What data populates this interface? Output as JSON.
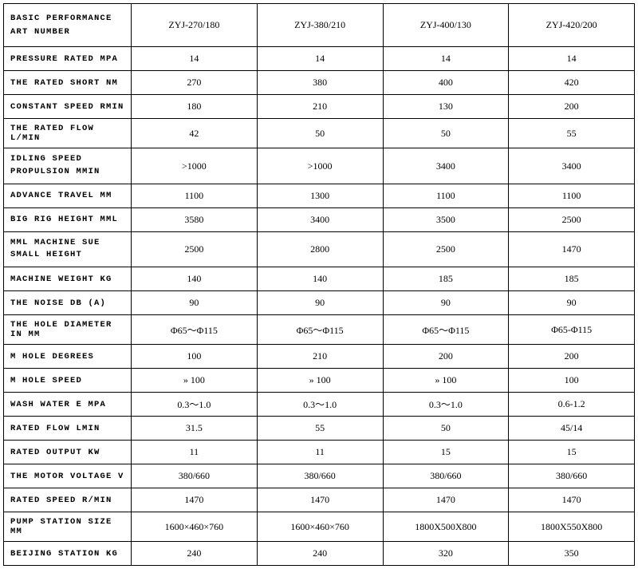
{
  "header_label": "BASIC PERFORMANCE<br>ART NUMBER",
  "columns": [
    "ZYJ-270/180",
    "ZYJ-380/210",
    "ZYJ-400/130",
    "ZYJ-420/200"
  ],
  "rows": [
    {
      "label": "PRESSURE RATED MPA",
      "values": [
        "14",
        "14",
        "14",
        "14"
      ]
    },
    {
      "label": "THE RATED SHORT NM",
      "values": [
        "270",
        "380",
        "400",
        "420"
      ]
    },
    {
      "label": "CONSTANT SPEED RMIN",
      "values": [
        "180",
        "210",
        "130",
        "200"
      ]
    },
    {
      "label": "THE RATED FLOW L/MIN",
      "values": [
        "42",
        "50",
        "50",
        "55"
      ]
    },
    {
      "label": "IDLING SPEED<br>PROPULSION MMIN",
      "values": [
        ">1000",
        ">1000",
        "3400",
        "3400"
      ],
      "tall": true
    },
    {
      "label": "ADVANCE TRAVEL MM",
      "values": [
        "1100",
        "1300",
        "1100",
        "1100"
      ]
    },
    {
      "label": "BIG RIG HEIGHT MML",
      "values": [
        "3580",
        "3400",
        "3500",
        "2500"
      ]
    },
    {
      "label": "MML MACHINE SUE<br>SMALL HEIGHT",
      "values": [
        "2500",
        "2800",
        "2500",
        "1470"
      ],
      "tall": true
    },
    {
      "label": "MACHINE WEIGHT KG",
      "values": [
        "140",
        "140",
        "185",
        "185"
      ]
    },
    {
      "label": "THE NOISE DB (A)",
      "values": [
        "90",
        "90",
        "90",
        "90"
      ]
    },
    {
      "label": "THE HOLE DIAMETER IN MM",
      "values": [
        "Φ65～Φ115",
        "Φ65～Φ115",
        "Φ65～Φ115",
        "Φ65-Φ115"
      ]
    },
    {
      "label": "M HOLE DEGREES",
      "values": [
        "100",
        "210",
        "200",
        "200"
      ]
    },
    {
      "label": "M HOLE SPEED",
      "values": [
        "» 100",
        "» 100",
        "» 100",
        "100"
      ]
    },
    {
      "label": "WASH WATER E MPA",
      "values": [
        "0.3～1.0",
        "0.3～1.0",
        "0.3～1.0",
        "0.6-1.2"
      ]
    },
    {
      "label": "RATED FLOW LMIN",
      "values": [
        "31.5",
        "55",
        "50",
        "45/14"
      ]
    },
    {
      "label": "RATED OUTPUT KW",
      "values": [
        "11",
        "11",
        "15",
        "15"
      ]
    },
    {
      "label": "THE MOTOR VOLTAGE V",
      "values": [
        "380/660",
        "380/660",
        "380/660",
        "380/660"
      ]
    },
    {
      "label": "RATED SPEED R/MIN",
      "values": [
        "1470",
        "1470",
        "1470",
        "1470"
      ]
    },
    {
      "label": "PUMP STATION SIZE MM",
      "values": [
        "1600×460×760",
        "1600×460×760",
        "1800X500X800",
        "1800X550X800"
      ]
    },
    {
      "label": "BEIJING STATION KG",
      "values": [
        "240",
        "240",
        "320",
        "350"
      ]
    }
  ]
}
